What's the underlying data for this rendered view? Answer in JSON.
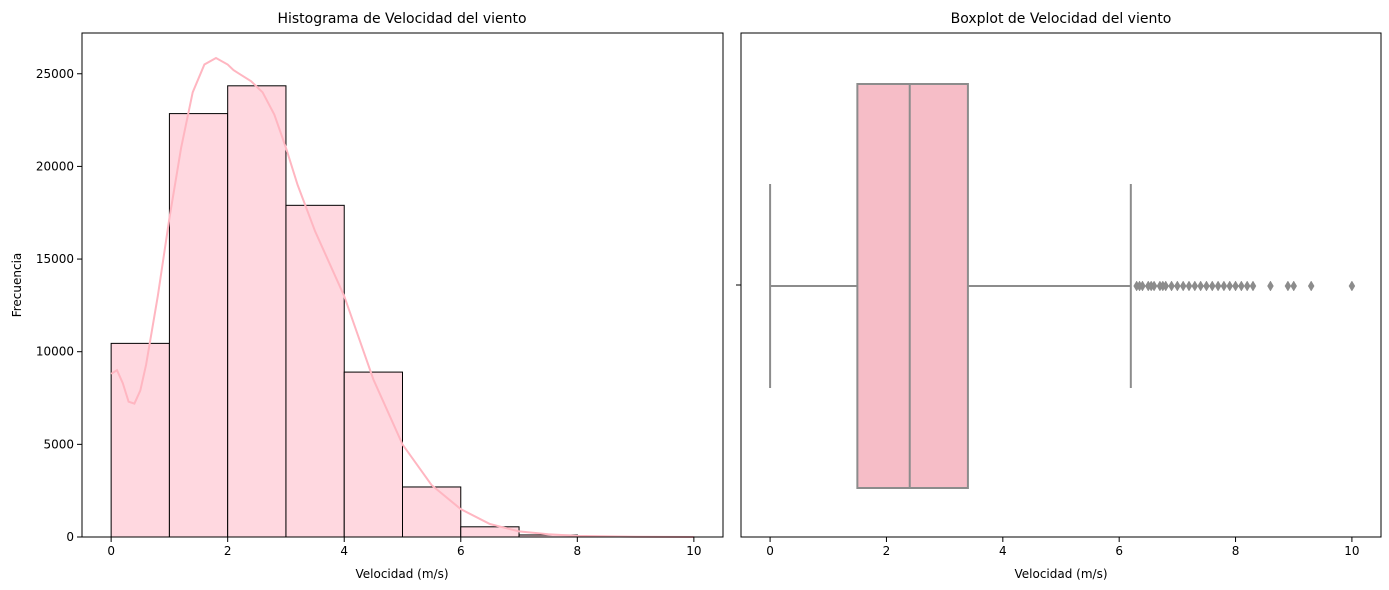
{
  "chart_data": [
    {
      "type": "bar",
      "title": "Histograma de Velocidad del viento",
      "xlabel": "Velocidad (m/s)",
      "ylabel": "Frecuencia",
      "xlim": [
        -0.5,
        10.5
      ],
      "ylim": [
        0,
        27200
      ],
      "xticks": [
        0,
        2,
        4,
        6,
        8,
        10
      ],
      "yticks": [
        0,
        5000,
        10000,
        15000,
        20000,
        25000
      ],
      "bin_edges": [
        0,
        1,
        2,
        3,
        4,
        5,
        6,
        7,
        8,
        9,
        10
      ],
      "values": [
        10450,
        22850,
        24350,
        17900,
        8900,
        2700,
        550,
        110,
        15,
        5
      ],
      "kde": {
        "x": [
          0,
          0.1,
          0.2,
          0.3,
          0.4,
          0.5,
          0.6,
          0.8,
          1.0,
          1.2,
          1.4,
          1.6,
          1.8,
          2.0,
          2.1,
          2.2,
          2.4,
          2.6,
          2.8,
          3.0,
          3.2,
          3.5,
          4.0,
          4.5,
          5.0,
          5.5,
          6.0,
          6.5,
          7.0,
          7.5,
          8.0,
          9.0,
          10.0
        ],
        "y": [
          8800,
          9000,
          8300,
          7300,
          7200,
          7900,
          9300,
          13000,
          17200,
          21000,
          24000,
          25500,
          25850,
          25500,
          25200,
          25000,
          24600,
          24000,
          22800,
          21000,
          19000,
          16500,
          13000,
          8500,
          5000,
          2800,
          1500,
          700,
          300,
          150,
          60,
          15,
          0
        ]
      },
      "colors": {
        "bar": "#ffd8e0",
        "edge": "#000000",
        "kde": "#ffb6c1"
      }
    },
    {
      "type": "boxplot",
      "title": "Boxplot de Velocidad del viento",
      "xlabel": "Velocidad (m/s)",
      "xlim": [
        -0.5,
        10.5
      ],
      "xticks": [
        0,
        2,
        4,
        6,
        8,
        10
      ],
      "whisker_low": 0,
      "q1": 1.5,
      "median": 2.4,
      "q3": 3.4,
      "whisker_high": 6.2,
      "outliers": [
        6.3,
        6.35,
        6.4,
        6.5,
        6.55,
        6.6,
        6.7,
        6.75,
        6.8,
        6.9,
        7.0,
        7.1,
        7.2,
        7.3,
        7.4,
        7.5,
        7.6,
        7.7,
        7.8,
        7.9,
        8.0,
        8.1,
        8.2,
        8.3,
        8.6,
        8.9,
        9.0,
        9.3,
        10.0
      ],
      "colors": {
        "box": "#f6bdc7",
        "line": "#8c8c8c"
      }
    }
  ]
}
